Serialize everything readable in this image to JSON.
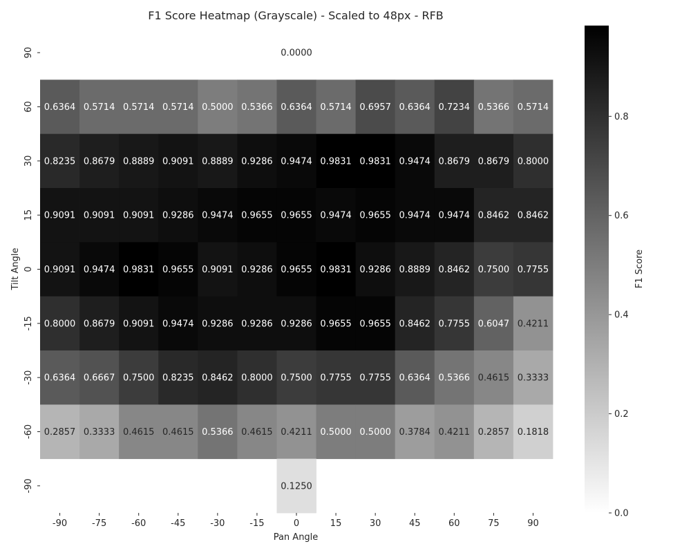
{
  "chart_data": {
    "type": "heatmap",
    "title": "F1 Score Heatmap (Grayscale) - Scaled to 48px - RFB",
    "xlabel": "Pan Angle",
    "ylabel": "Tilt Angle",
    "x_categories": [
      "-90",
      "-75",
      "-60",
      "-45",
      "-30",
      "-15",
      "0",
      "15",
      "30",
      "45",
      "60",
      "75",
      "90"
    ],
    "y_categories": [
      "90",
      "60",
      "30",
      "15",
      "0",
      "-15",
      "-30",
      "-60",
      "-90"
    ],
    "values": [
      [
        null,
        null,
        null,
        null,
        null,
        null,
        0.0,
        null,
        null,
        null,
        null,
        null,
        null
      ],
      [
        0.6364,
        0.5714,
        0.5714,
        0.5714,
        0.5,
        0.5366,
        0.6364,
        0.5714,
        0.6957,
        0.6364,
        0.7234,
        0.5366,
        0.5714
      ],
      [
        0.8235,
        0.8679,
        0.8889,
        0.9091,
        0.8889,
        0.9286,
        0.9474,
        0.9831,
        0.9831,
        0.9474,
        0.8679,
        0.8679,
        0.8
      ],
      [
        0.9091,
        0.9091,
        0.9091,
        0.9286,
        0.9474,
        0.9655,
        0.9655,
        0.9474,
        0.9655,
        0.9474,
        0.9474,
        0.8462,
        0.8462
      ],
      [
        0.9091,
        0.9474,
        0.9831,
        0.9655,
        0.9091,
        0.9286,
        0.9655,
        0.9831,
        0.9286,
        0.8889,
        0.8462,
        0.75,
        0.7755
      ],
      [
        0.8,
        0.8679,
        0.9091,
        0.9474,
        0.9286,
        0.9286,
        0.9286,
        0.9655,
        0.9655,
        0.8462,
        0.7755,
        0.6047,
        0.4211
      ],
      [
        0.6364,
        0.6667,
        0.75,
        0.8235,
        0.8462,
        0.8,
        0.75,
        0.7755,
        0.7755,
        0.6364,
        0.5366,
        0.4615,
        0.3333
      ],
      [
        0.2857,
        0.3333,
        0.4615,
        0.4615,
        0.5366,
        0.4615,
        0.4211,
        0.5,
        0.5,
        0.3784,
        0.4211,
        0.2857,
        0.1818
      ],
      [
        null,
        null,
        null,
        null,
        null,
        null,
        0.125,
        null,
        null,
        null,
        null,
        null,
        null
      ]
    ],
    "colorbar": {
      "label": "F1 Score",
      "vmin": 0.0,
      "vmax": 0.9831,
      "ticks": [
        0.0,
        0.2,
        0.4,
        0.6,
        0.8
      ],
      "tick_labels": [
        "0.0",
        "0.2",
        "0.4",
        "0.6",
        "0.8"
      ],
      "colormap": "gray_r",
      "low_color": "#ffffff",
      "high_color": "#000000"
    },
    "grid": false
  }
}
